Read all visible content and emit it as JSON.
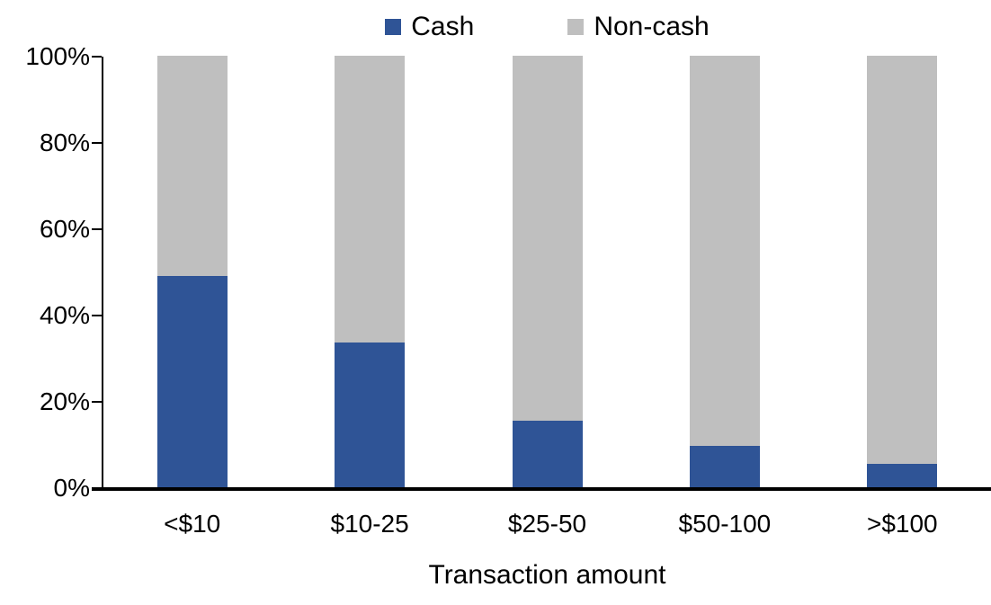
{
  "chart_data": {
    "type": "bar",
    "stacked": true,
    "stacking": "percent",
    "categories": [
      "<$10",
      "$10-25",
      "$25-50",
      "$50-100",
      ">$100"
    ],
    "series": [
      {
        "name": "Cash",
        "color": "#2F5496",
        "values": [
          49,
          33.5,
          15.5,
          9.5,
          5.5
        ]
      },
      {
        "name": "Non-cash",
        "color": "#BFBFBF",
        "values": [
          51,
          66.5,
          84.5,
          90.5,
          94.5
        ]
      }
    ],
    "xlabel": "Transaction amount",
    "ylabel": "",
    "ylim": [
      0,
      100
    ],
    "yticks": [
      "0%",
      "20%",
      "40%",
      "60%",
      "80%",
      "100%"
    ],
    "grid": false,
    "legend_position": "top-center",
    "axis_color": "#000000",
    "text_color": "#000000",
    "background_color": "#FFFFFF"
  }
}
